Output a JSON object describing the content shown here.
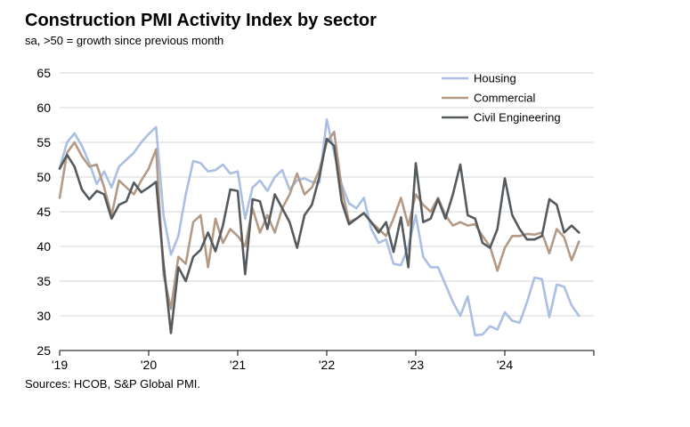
{
  "title": "Construction PMI Activity Index by sector",
  "subtitle": "sa, >50 = growth since previous month",
  "source": "Sources: HCOB, S&P Global PMI.",
  "chart_data": {
    "type": "line",
    "x_start": "2019-01",
    "x_frequency": "monthly",
    "x_tick_labels": [
      "'19",
      "'20",
      "'21",
      "'22",
      "'23",
      "'24"
    ],
    "ylim": [
      25,
      65
    ],
    "y_ticks": [
      25,
      30,
      35,
      40,
      45,
      50,
      55,
      60,
      65
    ],
    "grid": true,
    "legend_position": "top-right",
    "series": [
      {
        "name": "Housing",
        "color": "#a9bfe3",
        "values": [
          51.3,
          55.0,
          56.3,
          54.5,
          52.0,
          49.0,
          50.8,
          48.5,
          51.5,
          52.5,
          53.5,
          55.0,
          56.2,
          57.2,
          44.5,
          38.8,
          41.5,
          47.5,
          52.3,
          52.0,
          50.8,
          51.0,
          51.8,
          50.5,
          50.8,
          44.0,
          48.5,
          49.5,
          48.0,
          50.0,
          51.0,
          48.2,
          49.5,
          49.8,
          49.3,
          49.2,
          58.3,
          53.5,
          49.0,
          46.2,
          45.5,
          47.0,
          42.5,
          40.5,
          41.0,
          37.5,
          37.3,
          40.0,
          44.5,
          38.5,
          37.0,
          37.0,
          34.5,
          32.0,
          30.0,
          32.8,
          27.2,
          27.3,
          28.5,
          28.0,
          30.5,
          29.3,
          29.0,
          32.0,
          35.5,
          35.3,
          29.8,
          34.5,
          34.2,
          31.5,
          30.0
        ]
      },
      {
        "name": "Commercial",
        "color": "#b49a84",
        "values": [
          47.0,
          53.5,
          55.0,
          53.0,
          51.5,
          51.8,
          48.5,
          44.5,
          49.5,
          48.5,
          47.5,
          49.5,
          51.2,
          54.0,
          36.0,
          31.0,
          38.5,
          37.5,
          43.5,
          44.5,
          37.0,
          44.0,
          40.5,
          42.5,
          41.5,
          40.0,
          45.5,
          42.0,
          44.5,
          42.0,
          45.5,
          47.5,
          50.5,
          47.5,
          48.5,
          51.0,
          55.0,
          56.5,
          48.5,
          43.5,
          44.0,
          44.8,
          43.5,
          42.5,
          41.5,
          44.0,
          47.0,
          43.0,
          47.5,
          46.0,
          45.0,
          47.0,
          44.5,
          43.0,
          43.5,
          43.0,
          43.2,
          41.5,
          40.0,
          36.5,
          39.8,
          41.5,
          41.5,
          41.8,
          41.7,
          42.0,
          39.0,
          42.5,
          41.3,
          38.0,
          40.7
        ]
      },
      {
        "name": "Civil Engineering",
        "color": "#555a5e",
        "values": [
          51.2,
          53.2,
          51.5,
          48.2,
          46.8,
          48.0,
          47.5,
          44.0,
          46.0,
          46.5,
          49.2,
          47.8,
          48.5,
          49.3,
          37.5,
          27.5,
          37.0,
          35.0,
          38.5,
          39.5,
          42.0,
          39.3,
          43.0,
          48.2,
          48.0,
          36.0,
          46.8,
          46.5,
          42.5,
          47.5,
          45.5,
          43.5,
          39.8,
          44.5,
          46.0,
          50.0,
          55.5,
          54.5,
          46.5,
          43.2,
          44.0,
          44.8,
          43.5,
          42.0,
          43.5,
          39.2,
          44.2,
          37.0,
          52.0,
          43.5,
          44.0,
          46.8,
          44.0,
          47.5,
          51.8,
          44.5,
          44.0,
          40.5,
          39.8,
          42.5,
          49.8,
          44.5,
          42.5,
          41.0,
          41.0,
          41.5,
          46.8,
          46.0,
          42.0,
          43.0,
          42.0
        ]
      }
    ]
  }
}
